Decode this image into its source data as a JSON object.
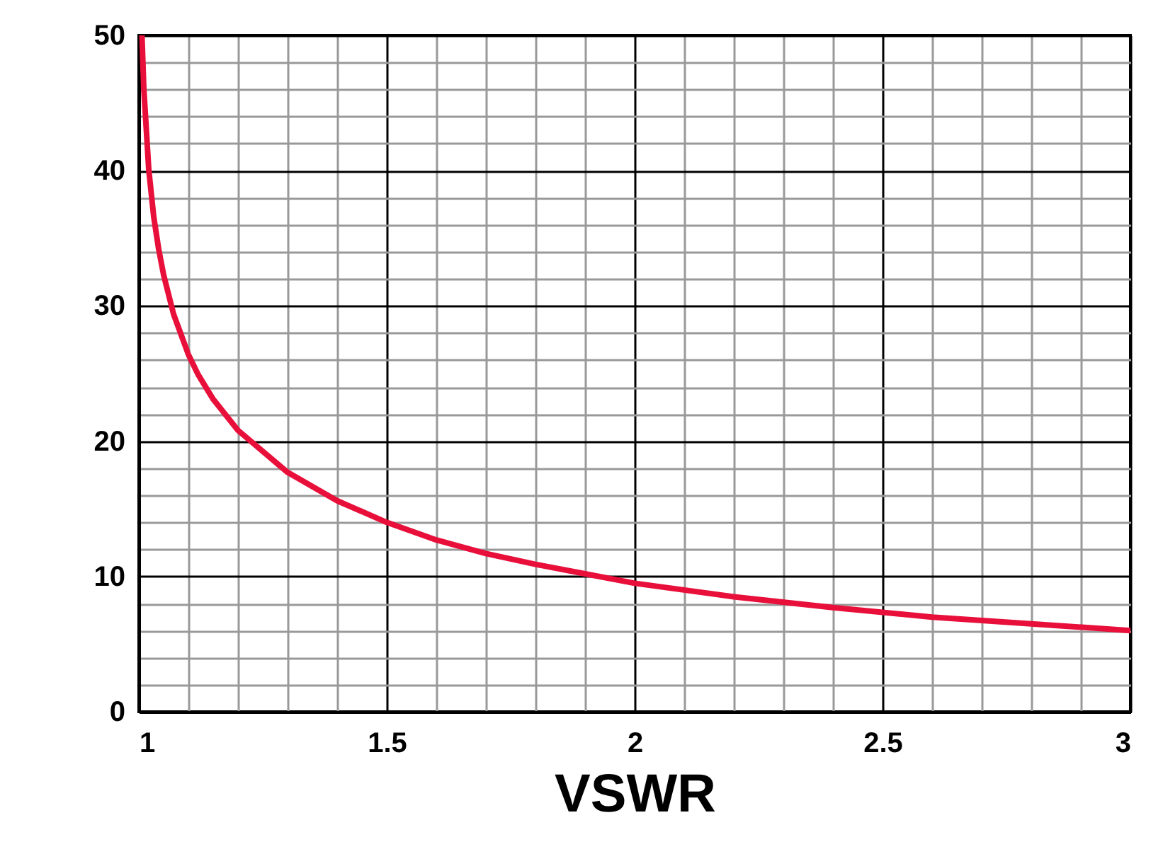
{
  "chart_data": {
    "type": "line",
    "xlabel": "VSWR",
    "x": [
      1.0063,
      1.01,
      1.02,
      1.03,
      1.04,
      1.05,
      1.07,
      1.1,
      1.12,
      1.15,
      1.2,
      1.3,
      1.4,
      1.5,
      1.6,
      1.7,
      1.8,
      1.9,
      2.0,
      2.2,
      2.4,
      2.6,
      2.8,
      3.0
    ],
    "series": [
      {
        "color": "#e8103a",
        "values": [
          50,
          46.1,
          40.1,
          36.6,
          34.2,
          32.3,
          29.4,
          26.4,
          24.9,
          23.1,
          20.8,
          17.7,
          15.6,
          14.0,
          12.7,
          11.7,
          10.9,
          10.2,
          9.5,
          8.5,
          7.7,
          7.0,
          6.5,
          6.0
        ]
      }
    ],
    "xlim": [
      1,
      3
    ],
    "ylim": [
      0,
      50
    ],
    "xticks": [
      1,
      {
        "value": 1.1,
        "label": null
      },
      {
        "value": 1.2,
        "label": null
      },
      {
        "value": 1.3,
        "label": null
      },
      {
        "value": 1.4,
        "label": null
      },
      1.5,
      {
        "value": 1.6,
        "label": null
      },
      {
        "value": 1.7,
        "label": null
      },
      {
        "value": 1.8,
        "label": null
      },
      {
        "value": 1.9,
        "label": null
      },
      2,
      {
        "value": 2.1,
        "label": null
      },
      {
        "value": 2.2,
        "label": null
      },
      {
        "value": 2.3,
        "label": null
      },
      {
        "value": 2.4,
        "label": null
      },
      2.5,
      {
        "value": 2.6,
        "label": null
      },
      {
        "value": 2.7,
        "label": null
      },
      {
        "value": 2.8,
        "label": null
      },
      {
        "value": 2.9,
        "label": null
      },
      3
    ],
    "yticks": [
      0,
      {
        "value": 2,
        "label": null
      },
      {
        "value": 4,
        "label": null
      },
      {
        "value": 6,
        "label": null
      },
      {
        "value": 8,
        "label": null
      },
      10,
      {
        "value": 12,
        "label": null
      },
      {
        "value": 14,
        "label": null
      },
      {
        "value": 16,
        "label": null
      },
      {
        "value": 18,
        "label": null
      },
      20,
      {
        "value": 22,
        "label": null
      },
      {
        "value": 24,
        "label": null
      },
      {
        "value": 26,
        "label": null
      },
      {
        "value": 28,
        "label": null
      },
      30,
      {
        "value": 32,
        "label": null
      },
      {
        "value": 34,
        "label": null
      },
      {
        "value": 36,
        "label": null
      },
      {
        "value": 38,
        "label": null
      },
      40,
      {
        "value": 42,
        "label": null
      },
      {
        "value": 44,
        "label": null
      },
      {
        "value": 46,
        "label": null
      },
      {
        "value": 48,
        "label": null
      },
      50
    ],
    "grid": true,
    "marker": "none",
    "line_style": "solid"
  }
}
